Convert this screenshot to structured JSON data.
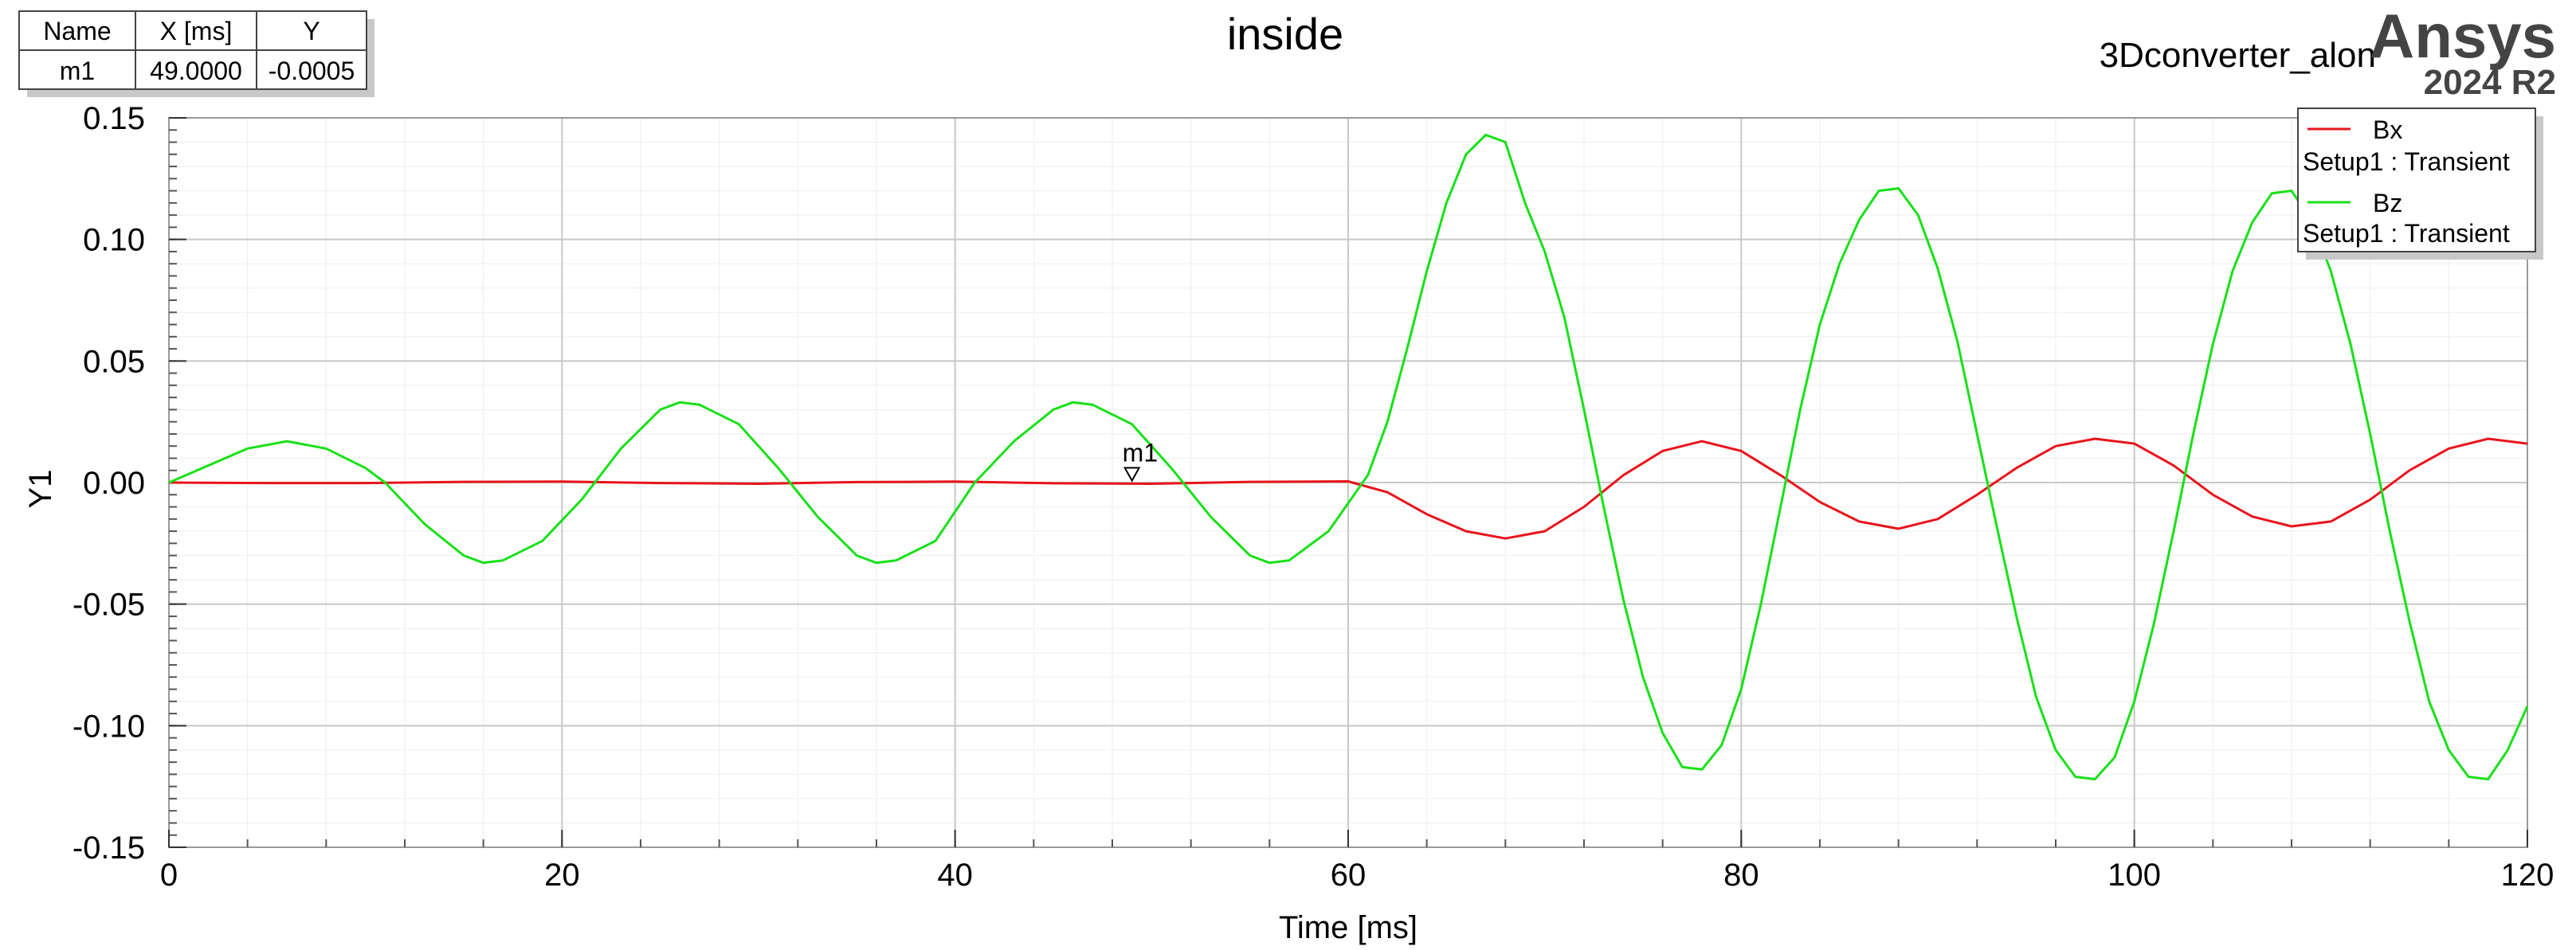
{
  "chart_data": {
    "type": "line",
    "title": "inside",
    "design_name": "3Dconverter_alon",
    "brand": {
      "name": "Ansys",
      "version": "2024 R2"
    },
    "xlabel": "Time [ms]",
    "ylabel": "Y1",
    "xlim": [
      0,
      120
    ],
    "ylim": [
      -0.15,
      0.15
    ],
    "xticks": [
      0,
      20,
      40,
      60,
      80,
      100,
      120
    ],
    "yticks": [
      -0.15,
      -0.1,
      -0.05,
      0.0,
      0.05,
      0.1,
      0.15
    ],
    "ytick_labels": [
      "-0.15",
      "-0.10",
      "-0.05",
      "0.00",
      "0.05",
      "0.10",
      "0.15"
    ],
    "grid": true,
    "legend_position": "top-right",
    "series": [
      {
        "name": "Bx",
        "sublabel": "Setup1 : Transient",
        "color": "#e8141c",
        "x": [
          0,
          5,
          10,
          15,
          20,
          25,
          30,
          35,
          40,
          45,
          50,
          55,
          60,
          62,
          64,
          66,
          68,
          70,
          72,
          74,
          76,
          78,
          80,
          82,
          84,
          86,
          88,
          90,
          92,
          94,
          96,
          98,
          100,
          102,
          104,
          106,
          108,
          110,
          112,
          114,
          116,
          118,
          120
        ],
        "y": [
          0,
          -0.0002,
          -0.0002,
          0.0003,
          0.0004,
          -0.0002,
          -0.0005,
          0.0002,
          0.0004,
          -0.0003,
          -0.0005,
          0.0003,
          0.0005,
          -0.004,
          -0.013,
          -0.02,
          -0.023,
          -0.02,
          -0.01,
          0.003,
          0.013,
          0.017,
          0.013,
          0.003,
          -0.008,
          -0.016,
          -0.019,
          -0.015,
          -0.005,
          0.006,
          0.015,
          0.018,
          0.016,
          0.007,
          -0.005,
          -0.014,
          -0.018,
          -0.016,
          -0.007,
          0.005,
          0.014,
          0.018,
          0.016
        ]
      },
      {
        "name": "Bz",
        "sublabel": "Setup1 : Transient",
        "color": "#18e018",
        "x": [
          0,
          2,
          4,
          6,
          8,
          10,
          11,
          13,
          15,
          16,
          17,
          19,
          21,
          23,
          25,
          26,
          27,
          29,
          31,
          33,
          35,
          36,
          37,
          39,
          41,
          43,
          45,
          46,
          47,
          49,
          51,
          53,
          55,
          56,
          57,
          59,
          61,
          62,
          63,
          64,
          65,
          66,
          67,
          68,
          69,
          70,
          71,
          72,
          73,
          74,
          75,
          76,
          77,
          78,
          79,
          80,
          81,
          82,
          83,
          84,
          85,
          86,
          87,
          88,
          89,
          90,
          91,
          92,
          93,
          94,
          95,
          96,
          97,
          98,
          99,
          100,
          101,
          102,
          103,
          104,
          105,
          106,
          107,
          108,
          109,
          110,
          111,
          112,
          113,
          114,
          115,
          116,
          117,
          118,
          119,
          120
        ],
        "y": [
          0,
          0.007,
          0.014,
          0.017,
          0.014,
          0.006,
          0.0,
          -0.017,
          -0.03,
          -0.033,
          -0.032,
          -0.024,
          -0.007,
          0.014,
          0.03,
          0.033,
          0.032,
          0.024,
          0.006,
          -0.014,
          -0.03,
          -0.033,
          -0.032,
          -0.024,
          0.0,
          0.017,
          0.03,
          0.033,
          0.032,
          0.024,
          0.006,
          -0.014,
          -0.03,
          -0.033,
          -0.032,
          -0.02,
          0.003,
          0.025,
          0.055,
          0.087,
          0.115,
          0.135,
          0.143,
          0.14,
          0.115,
          0.095,
          0.068,
          0.03,
          -0.01,
          -0.048,
          -0.08,
          -0.103,
          -0.117,
          -0.118,
          -0.108,
          -0.085,
          -0.05,
          -0.01,
          0.03,
          0.065,
          0.09,
          0.108,
          0.12,
          0.121,
          0.11,
          0.088,
          0.058,
          0.02,
          -0.018,
          -0.055,
          -0.088,
          -0.11,
          -0.121,
          -0.122,
          -0.113,
          -0.09,
          -0.058,
          -0.02,
          0.02,
          0.057,
          0.087,
          0.107,
          0.119,
          0.12,
          0.108,
          0.087,
          0.057,
          0.02,
          -0.02,
          -0.057,
          -0.09,
          -0.11,
          -0.121,
          -0.122,
          -0.11,
          -0.092
        ]
      }
    ],
    "markers": [
      {
        "name": "m1",
        "x": 49.0,
        "y": -0.0005
      }
    ],
    "marker_table": {
      "headers": [
        "Name",
        "X [ms]",
        "Y"
      ],
      "rows": [
        [
          "m1",
          "49.0000",
          "-0.0005"
        ]
      ]
    }
  }
}
